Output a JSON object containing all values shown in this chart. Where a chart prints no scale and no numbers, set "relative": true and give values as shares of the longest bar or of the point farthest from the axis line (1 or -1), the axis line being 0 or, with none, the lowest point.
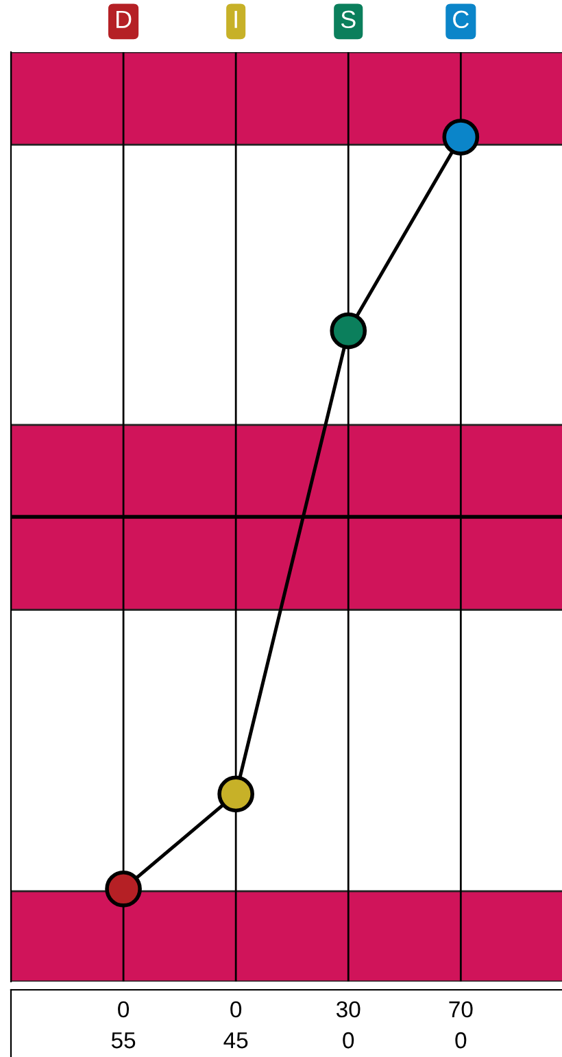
{
  "chart_data": {
    "type": "line",
    "relative": true,
    "categories": [
      "D",
      "I",
      "S",
      "C"
    ],
    "series": [
      {
        "color": "#000000",
        "colors": [
          "#b52025",
          "#c7b128",
          "#0b7f5c",
          "#0b85c9"
        ],
        "values": [
          -0.98,
          -0.73,
          0.49,
          1
        ]
      }
    ],
    "marker": "circle",
    "line_style": "solid",
    "grid": "x",
    "bands": [
      {
        "axis": "y",
        "from": 0.98,
        "to": 1.224,
        "color": "#d0145a"
      },
      {
        "axis": "y",
        "from": -0.245,
        "to": 0.242,
        "color": "#d0145a"
      },
      {
        "axis": "y",
        "from": -1.224,
        "to": -0.986,
        "color": "#d0145a"
      }
    ],
    "annotations": [
      "0",
      "0",
      "30",
      "70",
      "55",
      "45",
      "0",
      "0"
    ]
  }
}
